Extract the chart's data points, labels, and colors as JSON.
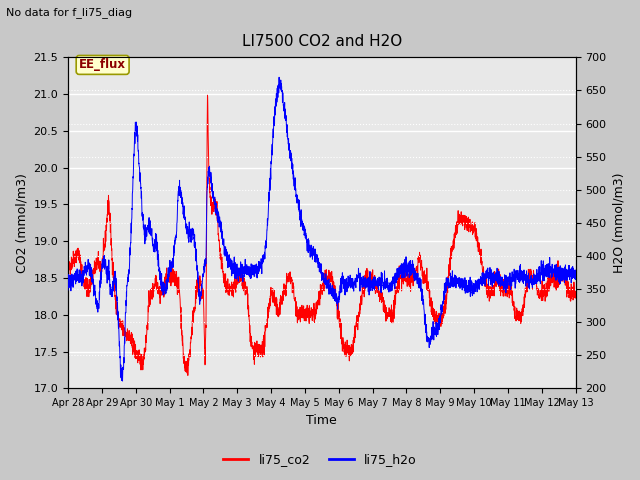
{
  "title": "LI7500 CO2 and H2O",
  "xlabel": "Time",
  "ylabel_left": "CO2 (mmol/m3)",
  "ylabel_right": "H2O (mmol/m3)",
  "top_left_text": "No data for f_li75_diag",
  "annotation_text": "EE_flux",
  "ylim_left": [
    17.0,
    21.5
  ],
  "ylim_right": [
    200,
    700
  ],
  "yticks_left": [
    17.0,
    17.5,
    18.0,
    18.5,
    19.0,
    19.5,
    20.0,
    20.5,
    21.0,
    21.5
  ],
  "yticks_right": [
    200,
    250,
    300,
    350,
    400,
    450,
    500,
    550,
    600,
    650,
    700
  ],
  "legend_labels": [
    "li75_co2",
    "li75_h2o"
  ],
  "line_color_co2": "red",
  "line_color_h2o": "blue",
  "fig_bg_color": "#c8c8c8",
  "plot_bg_color": "#e8e8e8",
  "grid_color": "white",
  "annotation_bg": "#ffffcc",
  "annotation_border": "#999900",
  "x_tick_labels": [
    "Apr 28",
    "Apr 29",
    "Apr 30",
    "May 1",
    "May 2",
    "May 3",
    "May 4",
    "May 5",
    "May 6",
    "May 7",
    "May 8",
    "May 9",
    "May 10",
    "May 11",
    "May 12",
    "May 13"
  ],
  "x_tick_positions": [
    0,
    1,
    2,
    3,
    4,
    5,
    6,
    7,
    8,
    9,
    10,
    11,
    12,
    13,
    14,
    15
  ],
  "co2_control": [
    [
      0.0,
      18.6
    ],
    [
      0.15,
      18.75
    ],
    [
      0.3,
      18.85
    ],
    [
      0.45,
      18.5
    ],
    [
      0.6,
      18.3
    ],
    [
      0.75,
      18.6
    ],
    [
      0.9,
      18.7
    ],
    [
      1.0,
      18.65
    ],
    [
      1.1,
      19.0
    ],
    [
      1.2,
      19.6
    ],
    [
      1.3,
      18.8
    ],
    [
      1.4,
      18.2
    ],
    [
      1.5,
      17.9
    ],
    [
      1.6,
      17.8
    ],
    [
      1.7,
      17.75
    ],
    [
      1.8,
      17.7
    ],
    [
      1.9,
      17.6
    ],
    [
      2.0,
      17.5
    ],
    [
      2.1,
      17.4
    ],
    [
      2.2,
      17.35
    ],
    [
      2.3,
      17.6
    ],
    [
      2.4,
      18.2
    ],
    [
      2.5,
      18.3
    ],
    [
      2.6,
      18.5
    ],
    [
      2.7,
      18.3
    ],
    [
      2.8,
      18.3
    ],
    [
      2.9,
      18.5
    ],
    [
      3.0,
      18.5
    ],
    [
      3.1,
      18.5
    ],
    [
      3.2,
      18.5
    ],
    [
      3.3,
      18.3
    ],
    [
      3.4,
      17.5
    ],
    [
      3.45,
      17.3
    ],
    [
      3.55,
      17.3
    ],
    [
      3.6,
      17.5
    ],
    [
      3.7,
      18.0
    ],
    [
      3.8,
      18.3
    ],
    [
      3.9,
      18.5
    ],
    [
      3.95,
      18.3
    ],
    [
      4.0,
      18.3
    ],
    [
      4.05,
      17.3
    ],
    [
      4.08,
      18.0
    ],
    [
      4.12,
      21.05
    ],
    [
      4.16,
      19.95
    ],
    [
      4.2,
      19.6
    ],
    [
      4.25,
      19.4
    ],
    [
      4.3,
      19.5
    ],
    [
      4.35,
      19.45
    ],
    [
      4.4,
      19.4
    ],
    [
      4.45,
      19.0
    ],
    [
      4.5,
      18.8
    ],
    [
      4.6,
      18.5
    ],
    [
      4.7,
      18.4
    ],
    [
      4.8,
      18.3
    ],
    [
      4.9,
      18.4
    ],
    [
      5.0,
      18.45
    ],
    [
      5.1,
      18.5
    ],
    [
      5.2,
      18.4
    ],
    [
      5.3,
      18.3
    ],
    [
      5.4,
      17.6
    ],
    [
      5.5,
      17.5
    ],
    [
      5.6,
      17.5
    ],
    [
      5.7,
      17.5
    ],
    [
      5.8,
      17.6
    ],
    [
      5.9,
      18.0
    ],
    [
      6.0,
      18.3
    ],
    [
      6.1,
      18.2
    ],
    [
      6.2,
      18.0
    ],
    [
      6.3,
      18.2
    ],
    [
      6.4,
      18.3
    ],
    [
      6.5,
      18.5
    ],
    [
      6.6,
      18.5
    ],
    [
      6.7,
      18.2
    ],
    [
      6.8,
      18.0
    ],
    [
      6.9,
      18.0
    ],
    [
      7.0,
      18.0
    ],
    [
      7.1,
      18.0
    ],
    [
      7.2,
      18.0
    ],
    [
      7.3,
      18.0
    ],
    [
      7.4,
      18.2
    ],
    [
      7.5,
      18.3
    ],
    [
      7.6,
      18.5
    ],
    [
      7.7,
      18.5
    ],
    [
      7.8,
      18.5
    ],
    [
      7.9,
      18.3
    ],
    [
      8.0,
      18.0
    ],
    [
      8.1,
      17.6
    ],
    [
      8.2,
      17.5
    ],
    [
      8.3,
      17.5
    ],
    [
      8.4,
      17.5
    ],
    [
      8.5,
      17.8
    ],
    [
      8.6,
      18.0
    ],
    [
      8.7,
      18.3
    ],
    [
      8.8,
      18.5
    ],
    [
      8.9,
      18.5
    ],
    [
      9.0,
      18.5
    ],
    [
      9.1,
      18.4
    ],
    [
      9.2,
      18.3
    ],
    [
      9.3,
      18.2
    ],
    [
      9.4,
      18.0
    ],
    [
      9.5,
      18.0
    ],
    [
      9.6,
      18.0
    ],
    [
      9.7,
      18.3
    ],
    [
      9.8,
      18.5
    ],
    [
      9.9,
      18.5
    ],
    [
      10.0,
      18.5
    ],
    [
      10.1,
      18.5
    ],
    [
      10.2,
      18.5
    ],
    [
      10.3,
      18.6
    ],
    [
      10.4,
      18.8
    ],
    [
      10.5,
      18.5
    ],
    [
      10.6,
      18.5
    ],
    [
      10.7,
      18.2
    ],
    [
      10.8,
      18.0
    ],
    [
      10.9,
      17.9
    ],
    [
      11.0,
      17.9
    ],
    [
      11.1,
      18.0
    ],
    [
      11.2,
      18.3
    ],
    [
      11.3,
      18.8
    ],
    [
      11.4,
      19.0
    ],
    [
      11.5,
      19.2
    ],
    [
      11.6,
      19.3
    ],
    [
      11.7,
      19.3
    ],
    [
      11.8,
      19.25
    ],
    [
      11.9,
      19.2
    ],
    [
      12.0,
      19.2
    ],
    [
      12.1,
      19.0
    ],
    [
      12.2,
      18.8
    ],
    [
      12.3,
      18.5
    ],
    [
      12.4,
      18.3
    ],
    [
      12.5,
      18.3
    ],
    [
      12.6,
      18.4
    ],
    [
      12.7,
      18.5
    ],
    [
      12.8,
      18.4
    ],
    [
      12.9,
      18.3
    ],
    [
      13.0,
      18.4
    ],
    [
      13.1,
      18.3
    ],
    [
      13.2,
      18.0
    ],
    [
      13.3,
      18.0
    ],
    [
      13.4,
      18.0
    ],
    [
      13.5,
      18.2
    ],
    [
      13.6,
      18.5
    ],
    [
      13.7,
      18.5
    ],
    [
      13.8,
      18.5
    ],
    [
      13.9,
      18.3
    ],
    [
      14.0,
      18.3
    ],
    [
      14.1,
      18.3
    ],
    [
      14.2,
      18.4
    ],
    [
      14.3,
      18.5
    ],
    [
      14.4,
      18.5
    ],
    [
      14.5,
      18.5
    ],
    [
      14.6,
      18.5
    ],
    [
      14.7,
      18.5
    ],
    [
      14.8,
      18.3
    ],
    [
      14.9,
      18.3
    ],
    [
      15.0,
      18.3
    ]
  ],
  "h2o_control": [
    [
      0.0,
      360
    ],
    [
      0.1,
      365
    ],
    [
      0.2,
      370
    ],
    [
      0.3,
      370
    ],
    [
      0.4,
      365
    ],
    [
      0.5,
      380
    ],
    [
      0.6,
      385
    ],
    [
      0.65,
      380
    ],
    [
      0.7,
      375
    ],
    [
      0.75,
      360
    ],
    [
      0.8,
      345
    ],
    [
      0.85,
      330
    ],
    [
      0.9,
      320
    ],
    [
      0.95,
      355
    ],
    [
      1.0,
      385
    ],
    [
      1.05,
      390
    ],
    [
      1.1,
      390
    ],
    [
      1.15,
      370
    ],
    [
      1.2,
      380
    ],
    [
      1.25,
      350
    ],
    [
      1.3,
      340
    ],
    [
      1.35,
      360
    ],
    [
      1.4,
      375
    ],
    [
      1.45,
      330
    ],
    [
      1.5,
      290
    ],
    [
      1.55,
      225
    ],
    [
      1.6,
      215
    ],
    [
      1.65,
      240
    ],
    [
      1.7,
      310
    ],
    [
      1.75,
      360
    ],
    [
      1.8,
      380
    ],
    [
      1.85,
      420
    ],
    [
      1.9,
      480
    ],
    [
      1.95,
      560
    ],
    [
      2.0,
      595
    ],
    [
      2.02,
      600
    ],
    [
      2.05,
      580
    ],
    [
      2.08,
      555
    ],
    [
      2.1,
      540
    ],
    [
      2.15,
      500
    ],
    [
      2.2,
      460
    ],
    [
      2.25,
      440
    ],
    [
      2.3,
      430
    ],
    [
      2.35,
      445
    ],
    [
      2.4,
      450
    ],
    [
      2.45,
      440
    ],
    [
      2.5,
      420
    ],
    [
      2.55,
      410
    ],
    [
      2.6,
      430
    ],
    [
      2.65,
      400
    ],
    [
      2.7,
      375
    ],
    [
      2.75,
      360
    ],
    [
      2.8,
      355
    ],
    [
      2.85,
      350
    ],
    [
      2.9,
      350
    ],
    [
      2.95,
      365
    ],
    [
      3.0,
      380
    ],
    [
      3.05,
      385
    ],
    [
      3.1,
      390
    ],
    [
      3.15,
      420
    ],
    [
      3.2,
      430
    ],
    [
      3.25,
      490
    ],
    [
      3.28,
      505
    ],
    [
      3.3,
      500
    ],
    [
      3.33,
      495
    ],
    [
      3.35,
      490
    ],
    [
      3.4,
      470
    ],
    [
      3.45,
      455
    ],
    [
      3.5,
      440
    ],
    [
      3.55,
      435
    ],
    [
      3.6,
      430
    ],
    [
      3.65,
      435
    ],
    [
      3.7,
      440
    ],
    [
      3.75,
      420
    ],
    [
      3.8,
      390
    ],
    [
      3.85,
      360
    ],
    [
      3.9,
      335
    ],
    [
      3.95,
      350
    ],
    [
      4.0,
      380
    ],
    [
      4.05,
      390
    ],
    [
      4.08,
      400
    ],
    [
      4.1,
      490
    ],
    [
      4.13,
      515
    ],
    [
      4.15,
      525
    ],
    [
      4.17,
      530
    ],
    [
      4.2,
      525
    ],
    [
      4.25,
      505
    ],
    [
      4.3,
      490
    ],
    [
      4.35,
      475
    ],
    [
      4.4,
      470
    ],
    [
      4.45,
      460
    ],
    [
      4.5,
      445
    ],
    [
      4.55,
      435
    ],
    [
      4.6,
      415
    ],
    [
      4.65,
      405
    ],
    [
      4.7,
      400
    ],
    [
      4.75,
      390
    ],
    [
      4.8,
      385
    ],
    [
      4.85,
      380
    ],
    [
      4.9,
      380
    ],
    [
      4.95,
      378
    ],
    [
      5.0,
      378
    ],
    [
      5.1,
      378
    ],
    [
      5.2,
      378
    ],
    [
      5.3,
      378
    ],
    [
      5.4,
      378
    ],
    [
      5.5,
      378
    ],
    [
      5.6,
      378
    ],
    [
      5.7,
      385
    ],
    [
      5.8,
      400
    ],
    [
      5.85,
      420
    ],
    [
      5.9,
      450
    ],
    [
      5.95,
      500
    ],
    [
      6.0,
      540
    ],
    [
      6.05,
      580
    ],
    [
      6.1,
      610
    ],
    [
      6.15,
      635
    ],
    [
      6.2,
      650
    ],
    [
      6.22,
      655
    ],
    [
      6.25,
      658
    ],
    [
      6.27,
      660
    ],
    [
      6.3,
      655
    ],
    [
      6.35,
      640
    ],
    [
      6.4,
      620
    ],
    [
      6.45,
      600
    ],
    [
      6.5,
      580
    ],
    [
      6.55,
      560
    ],
    [
      6.6,
      545
    ],
    [
      6.65,
      525
    ],
    [
      6.7,
      510
    ],
    [
      6.75,
      495
    ],
    [
      6.8,
      480
    ],
    [
      6.85,
      465
    ],
    [
      6.9,
      455
    ],
    [
      6.95,
      445
    ],
    [
      7.0,
      435
    ],
    [
      7.05,
      425
    ],
    [
      7.1,
      418
    ],
    [
      7.15,
      412
    ],
    [
      7.2,
      408
    ],
    [
      7.25,
      405
    ],
    [
      7.3,
      400
    ],
    [
      7.35,
      395
    ],
    [
      7.4,
      390
    ],
    [
      7.45,
      382
    ],
    [
      7.5,
      375
    ],
    [
      7.55,
      368
    ],
    [
      7.6,
      362
    ],
    [
      7.65,
      358
    ],
    [
      7.7,
      354
    ],
    [
      7.75,
      350
    ],
    [
      7.8,
      346
    ],
    [
      7.85,
      342
    ],
    [
      7.9,
      338
    ],
    [
      7.95,
      334
    ],
    [
      8.0,
      330
    ],
    [
      8.05,
      355
    ],
    [
      8.1,
      365
    ],
    [
      8.15,
      360
    ],
    [
      8.2,
      358
    ],
    [
      8.25,
      355
    ],
    [
      8.3,
      358
    ],
    [
      8.35,
      362
    ],
    [
      8.4,
      358
    ],
    [
      8.45,
      355
    ],
    [
      8.5,
      360
    ],
    [
      8.55,
      365
    ],
    [
      8.6,
      368
    ],
    [
      8.65,
      364
    ],
    [
      8.7,
      360
    ],
    [
      8.75,
      360
    ],
    [
      8.8,
      360
    ],
    [
      8.85,
      360
    ],
    [
      8.9,
      360
    ],
    [
      8.95,
      360
    ],
    [
      9.0,
      360
    ],
    [
      9.1,
      360
    ],
    [
      9.2,
      360
    ],
    [
      9.3,
      360
    ],
    [
      9.4,
      358
    ],
    [
      9.5,
      355
    ],
    [
      9.55,
      353
    ],
    [
      9.6,
      358
    ],
    [
      9.7,
      368
    ],
    [
      9.8,
      378
    ],
    [
      9.9,
      380
    ],
    [
      10.0,
      380
    ],
    [
      10.1,
      380
    ],
    [
      10.2,
      378
    ],
    [
      10.3,
      368
    ],
    [
      10.4,
      358
    ],
    [
      10.45,
      345
    ],
    [
      10.5,
      330
    ],
    [
      10.55,
      300
    ],
    [
      10.6,
      280
    ],
    [
      10.62,
      275
    ],
    [
      10.65,
      272
    ],
    [
      10.7,
      270
    ],
    [
      10.75,
      278
    ],
    [
      10.8,
      285
    ],
    [
      10.85,
      288
    ],
    [
      10.9,
      290
    ],
    [
      10.95,
      295
    ],
    [
      11.0,
      305
    ],
    [
      11.1,
      335
    ],
    [
      11.2,
      360
    ],
    [
      11.3,
      362
    ],
    [
      11.4,
      362
    ],
    [
      11.5,
      360
    ],
    [
      11.6,
      360
    ],
    [
      11.7,
      358
    ],
    [
      11.8,
      355
    ],
    [
      11.9,
      352
    ],
    [
      12.0,
      354
    ],
    [
      12.1,
      358
    ],
    [
      12.2,
      362
    ],
    [
      12.3,
      366
    ],
    [
      12.4,
      370
    ],
    [
      12.5,
      370
    ],
    [
      12.6,
      368
    ],
    [
      12.7,
      366
    ],
    [
      12.8,
      362
    ],
    [
      12.9,
      360
    ],
    [
      13.0,
      362
    ],
    [
      13.1,
      365
    ],
    [
      13.2,
      368
    ],
    [
      13.3,
      370
    ],
    [
      13.4,
      370
    ],
    [
      13.5,
      368
    ],
    [
      13.6,
      364
    ],
    [
      13.7,
      362
    ],
    [
      13.8,
      366
    ],
    [
      13.9,
      370
    ],
    [
      14.0,
      375
    ],
    [
      14.1,
      378
    ],
    [
      14.2,
      380
    ],
    [
      14.3,
      380
    ],
    [
      14.4,
      378
    ],
    [
      14.5,
      376
    ],
    [
      14.6,
      374
    ],
    [
      14.7,
      373
    ],
    [
      14.8,
      373
    ],
    [
      14.9,
      372
    ],
    [
      15.0,
      372
    ]
  ]
}
